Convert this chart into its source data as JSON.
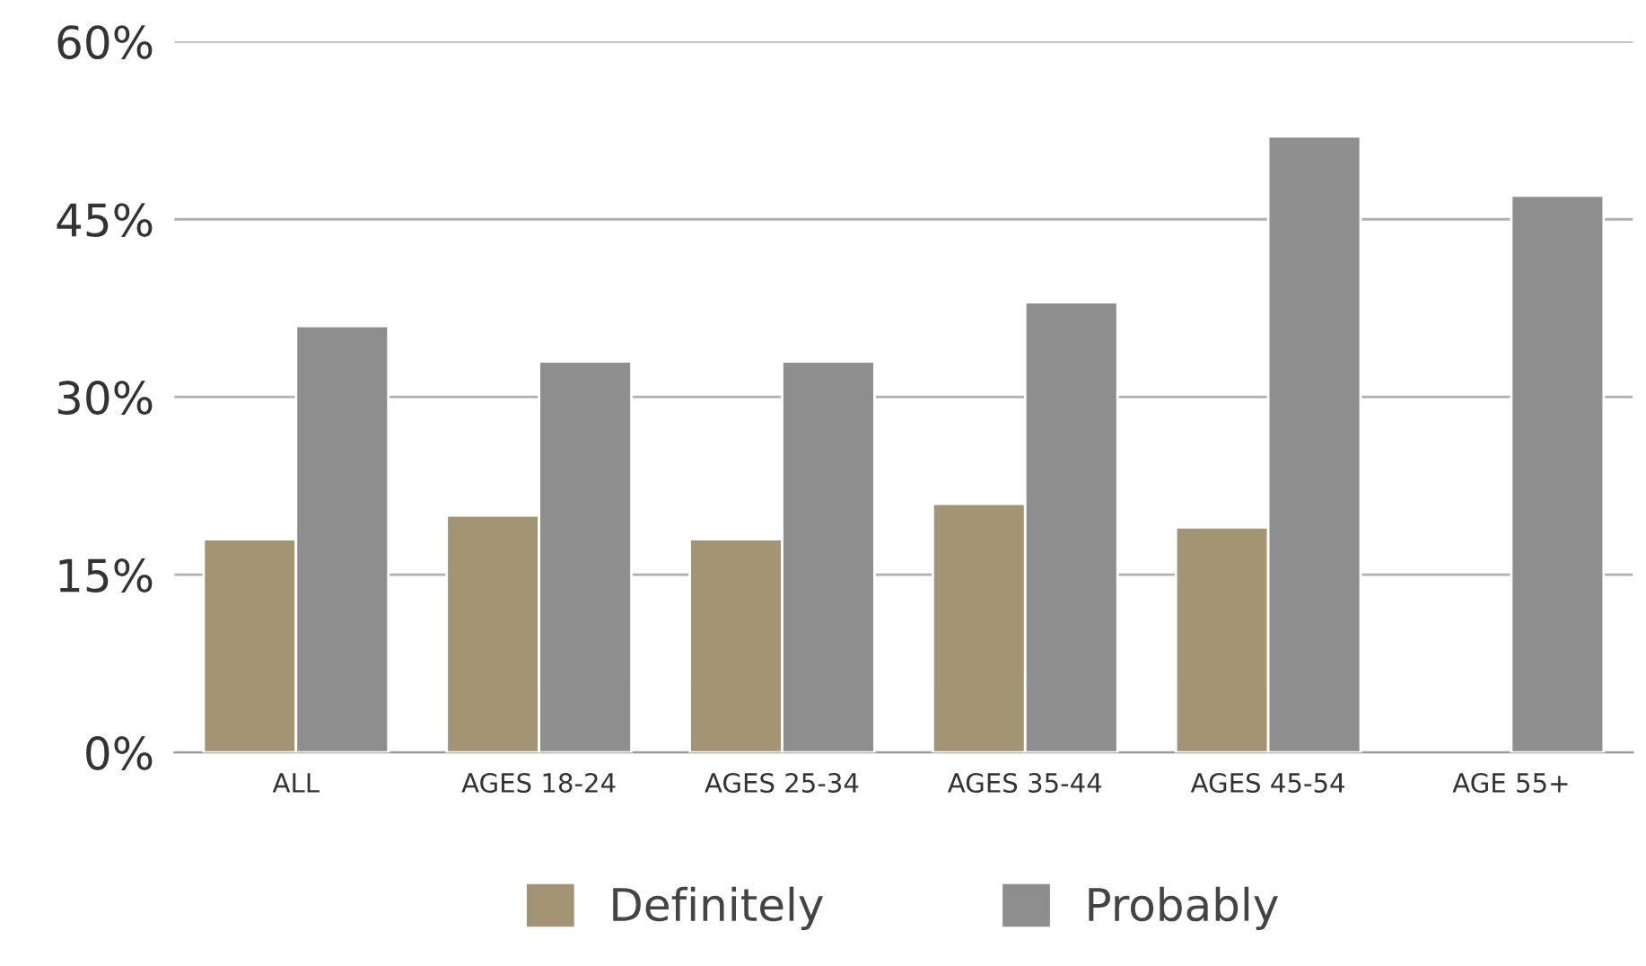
{
  "chart_data": {
    "type": "bar",
    "categories": [
      "ALL",
      "AGES 18-24",
      "AGES 25-34",
      "AGES 35-44",
      "AGES 45-54",
      "AGE 55+"
    ],
    "series": [
      {
        "name": "Definitely",
        "color": "#a39474",
        "values": [
          18,
          20,
          18,
          21,
          19,
          null
        ]
      },
      {
        "name": "Probably",
        "color": "#8e8e8e",
        "values": [
          36,
          33,
          33,
          38,
          52,
          47
        ]
      }
    ],
    "ylim": [
      0,
      60
    ],
    "yticks": [
      {
        "value": 0,
        "label": "0%"
      },
      {
        "value": 15,
        "label": "15%"
      },
      {
        "value": 30,
        "label": "30%"
      },
      {
        "value": 45,
        "label": "45%"
      },
      {
        "value": 60,
        "label": "60%"
      }
    ],
    "grid": "y",
    "legend": "bottom"
  }
}
